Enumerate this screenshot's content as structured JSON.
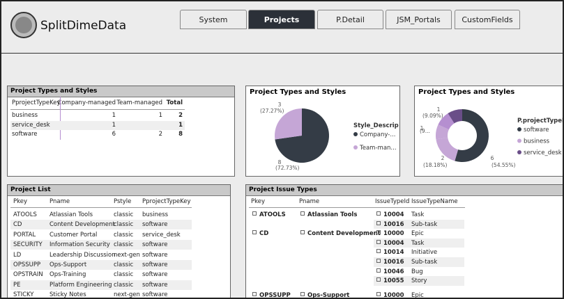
{
  "header": {
    "logo_text": "SplitDimeData",
    "tabs": [
      "System",
      "Projects",
      "P.Detail",
      "JSM_Portals",
      "CustomFields"
    ],
    "active_tab": 1
  },
  "matrix": {
    "title": "Project Types and Styles",
    "columns": [
      "PprojectTypeKey",
      "Company-managed",
      "Team-managed",
      "Total"
    ],
    "rows": [
      {
        "key": "business",
        "cells": [
          1,
          1,
          2
        ]
      },
      {
        "key": "service_desk",
        "cells": [
          1,
          null,
          1
        ]
      },
      {
        "key": "software",
        "cells": [
          6,
          2,
          8
        ]
      }
    ]
  },
  "pie": {
    "type": "pie",
    "title": "Project Types and Styles",
    "legend_title": "Style_Descrip",
    "slices": [
      {
        "name": "Company-...",
        "value": 8,
        "percent_label": "(72.73%)",
        "color": "#343c46"
      },
      {
        "name": "Team-man...",
        "value": 3,
        "percent_label": "(27.27%)",
        "color": "#c5a6d6"
      }
    ]
  },
  "donut": {
    "type": "donut",
    "title": "Project Types and Styles",
    "legend_title": "P.projectTypeKey",
    "legend": [
      {
        "name": "software",
        "color": "#343c46"
      },
      {
        "name": "business",
        "color": "#c5a6d6"
      },
      {
        "name": "service_desk",
        "color": "#6a4e88"
      }
    ],
    "slices": [
      {
        "value": 6,
        "percent_label": "(54.55%)",
        "color": "#343c46"
      },
      {
        "value": 2,
        "percent_label": "(18.18%)",
        "color": "#c5a6d6"
      },
      {
        "value": 1,
        "percent_label": "(9...",
        "color": "#c5a6d6"
      },
      {
        "value": 1,
        "percent_label": "(9.09%)",
        "color": "#b58fd0"
      },
      {
        "value": 1,
        "color": "#6a4e88"
      }
    ]
  },
  "project_list": {
    "title": "Project List",
    "columns": [
      "Pkey",
      "Pname",
      "Pstyle",
      "PprojectTypeKey"
    ],
    "rows": [
      [
        "ATOOLS",
        "Atlassian Tools",
        "classic",
        "business"
      ],
      [
        "CD",
        "Content Development",
        "classic",
        "software"
      ],
      [
        "PORTAL",
        "Customer Portal",
        "classic",
        "service_desk"
      ],
      [
        "SECURITY",
        "Information Security",
        "classic",
        "software"
      ],
      [
        "LD",
        "Leadership Discussion",
        "next-gen",
        "software"
      ],
      [
        "OPSSUPP",
        "Ops-Support",
        "classic",
        "software"
      ],
      [
        "OPSTRAIN",
        "Ops-Training",
        "classic",
        "software"
      ],
      [
        "PE",
        "Platform Engineering",
        "classic",
        "software"
      ],
      [
        "STICKY",
        "Sticky Notes",
        "next-gen",
        "software"
      ]
    ]
  },
  "issue_types": {
    "title": "Project Issue Types",
    "columns": [
      "Pkey",
      "Pname",
      "IssueTypeId",
      "IssueTypeName"
    ],
    "groups": [
      {
        "pkey": "ATOOLS",
        "pname": "Atlassian Tools",
        "rows": [
          [
            10004,
            "Task"
          ],
          [
            10016,
            "Sub-task"
          ]
        ]
      },
      {
        "pkey": "CD",
        "pname": "Content Development",
        "rows": [
          [
            10000,
            "Epic"
          ],
          [
            10004,
            "Task"
          ],
          [
            10014,
            "Initiative"
          ],
          [
            10016,
            "Sub-task"
          ],
          [
            10046,
            "Bug"
          ],
          [
            10055,
            "Story"
          ]
        ]
      },
      {
        "pkey": "OPSSUPP",
        "pname": "Ops-Support",
        "rows": [
          [
            10000,
            "Epic"
          ]
        ]
      }
    ]
  }
}
